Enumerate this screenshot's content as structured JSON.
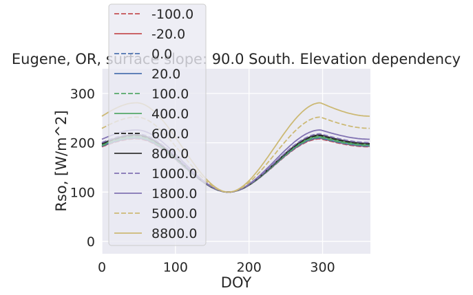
{
  "chart_data": {
    "type": "line",
    "title": "Eugene, OR, surface slope: 90.0 South. Elevation dependency",
    "xlabel": "DOY",
    "ylabel": "Rso, [W/m^2]",
    "xlim": [
      0,
      365
    ],
    "ylim": [
      -25,
      350
    ],
    "xticks": [
      0,
      100,
      200,
      300
    ],
    "yticks": [
      0,
      100,
      200,
      300
    ],
    "grid": true,
    "legend_position": "upper-left, overlapping plot",
    "curve_model": {
      "trough_doy": 172,
      "trough_value": 100,
      "winter_peak_doy": 47,
      "fall_peak_doy": 297,
      "dec31_value_fraction": 0.85
    },
    "series": [
      {
        "name": "-100.0",
        "color": "#c44e52",
        "dash": "dashed",
        "peak": 208
      },
      {
        "name": "-20.0",
        "color": "#c44e52",
        "dash": "solid",
        "peak": 209
      },
      {
        "name": "0.0",
        "color": "#4c72b0",
        "dash": "dashed",
        "peak": 209.5
      },
      {
        "name": "20.0",
        "color": "#4c72b0",
        "dash": "solid",
        "peak": 210
      },
      {
        "name": "100.0",
        "color": "#55a868",
        "dash": "dashed",
        "peak": 211
      },
      {
        "name": "400.0",
        "color": "#55a868",
        "dash": "solid",
        "peak": 213
      },
      {
        "name": "600.0",
        "color": "#1a1a1a",
        "dash": "dashed",
        "peak": 215
      },
      {
        "name": "800.0",
        "color": "#333333",
        "dash": "solid",
        "peak": 216
      },
      {
        "name": "1000.0",
        "color": "#8172b2",
        "dash": "dashed",
        "peak": 218
      },
      {
        "name": "1800.0",
        "color": "#8172b2",
        "dash": "solid",
        "peak": 226
      },
      {
        "name": "5000.0",
        "color": "#ccb974",
        "dash": "dashed",
        "peak": 252
      },
      {
        "name": "8800.0",
        "color": "#ccb974",
        "dash": "solid",
        "peak": 281
      }
    ]
  }
}
